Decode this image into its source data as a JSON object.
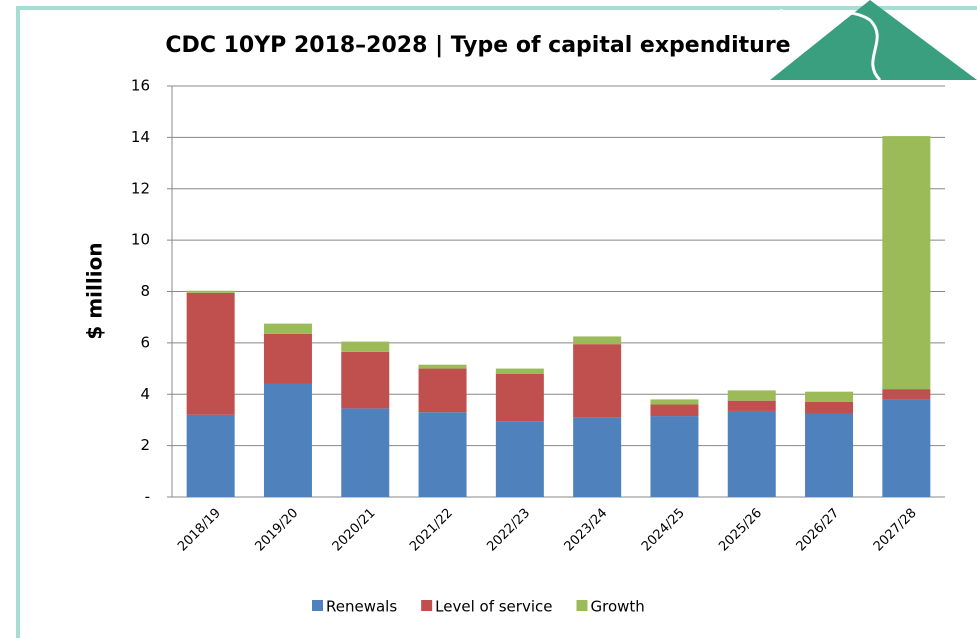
{
  "chart_data": {
    "type": "stacked_bar",
    "title": "CDC 10YP 2018–2028 | Type of capital expenditure",
    "y_label": "$ million",
    "categories": [
      "2018/19",
      "2019/20",
      "2020/21",
      "2021/22",
      "2022/23",
      "2023/24",
      "2024/25",
      "2025/26",
      "2026/27",
      "2027/28"
    ],
    "series": [
      {
        "name": "Renewals",
        "color": "#4f81bd",
        "values": [
          3.2,
          4.4,
          3.45,
          3.3,
          2.95,
          3.1,
          3.15,
          3.35,
          3.25,
          3.8
        ]
      },
      {
        "name": "Level of service",
        "color": "#c0504d",
        "values": [
          4.75,
          1.95,
          2.2,
          1.7,
          1.85,
          2.85,
          0.45,
          0.4,
          0.45,
          0.4
        ]
      },
      {
        "name": "Growth",
        "color": "#9bbb59",
        "values": [
          0.08,
          0.4,
          0.4,
          0.15,
          0.2,
          0.3,
          0.2,
          0.4,
          0.4,
          9.85
        ]
      }
    ],
    "ylim": [
      0,
      16
    ],
    "yticks": [
      {
        "value": 0,
        "label": "-"
      },
      2,
      4,
      6,
      8,
      10,
      12,
      14,
      16
    ],
    "grid": true,
    "legend": "bottom"
  }
}
